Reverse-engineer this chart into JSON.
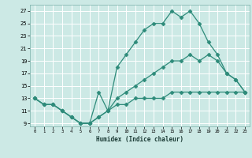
{
  "xlabel": "Humidex (Indice chaleur)",
  "bg_color": "#cce9e5",
  "grid_color": "#ffffff",
  "line_color": "#2e8b7a",
  "xlim": [
    -0.5,
    23.5
  ],
  "ylim": [
    8.5,
    28
  ],
  "xticks": [
    0,
    1,
    2,
    3,
    4,
    5,
    6,
    7,
    8,
    9,
    10,
    11,
    12,
    13,
    14,
    15,
    16,
    17,
    18,
    19,
    20,
    21,
    22,
    23
  ],
  "yticks": [
    9,
    11,
    13,
    15,
    17,
    19,
    21,
    23,
    25,
    27
  ],
  "line1_x": [
    0,
    1,
    2,
    3,
    4,
    5,
    6,
    7,
    8,
    9,
    10,
    11,
    12,
    13,
    14,
    15,
    16,
    17,
    18,
    19,
    20,
    21,
    22,
    23
  ],
  "line1_y": [
    13,
    12,
    12,
    11,
    10,
    9,
    9,
    14,
    11,
    18,
    20,
    22,
    24,
    25,
    25,
    27,
    26,
    27,
    25,
    22,
    20,
    17,
    16,
    14
  ],
  "line2_x": [
    0,
    1,
    2,
    3,
    4,
    5,
    6,
    7,
    8,
    9,
    10,
    11,
    12,
    13,
    14,
    15,
    16,
    17,
    18,
    19,
    20,
    21,
    22,
    23
  ],
  "line2_y": [
    13,
    12,
    12,
    11,
    10,
    9,
    9,
    10,
    11,
    13,
    14,
    15,
    16,
    17,
    18,
    19,
    19,
    20,
    19,
    20,
    19,
    17,
    16,
    14
  ],
  "line3_x": [
    0,
    1,
    2,
    3,
    4,
    5,
    6,
    7,
    8,
    9,
    10,
    11,
    12,
    13,
    14,
    15,
    16,
    17,
    18,
    19,
    20,
    21,
    22,
    23
  ],
  "line3_y": [
    13,
    12,
    12,
    11,
    10,
    9,
    9,
    10,
    11,
    12,
    12,
    13,
    13,
    13,
    13,
    14,
    14,
    14,
    14,
    14,
    14,
    14,
    14,
    14
  ]
}
